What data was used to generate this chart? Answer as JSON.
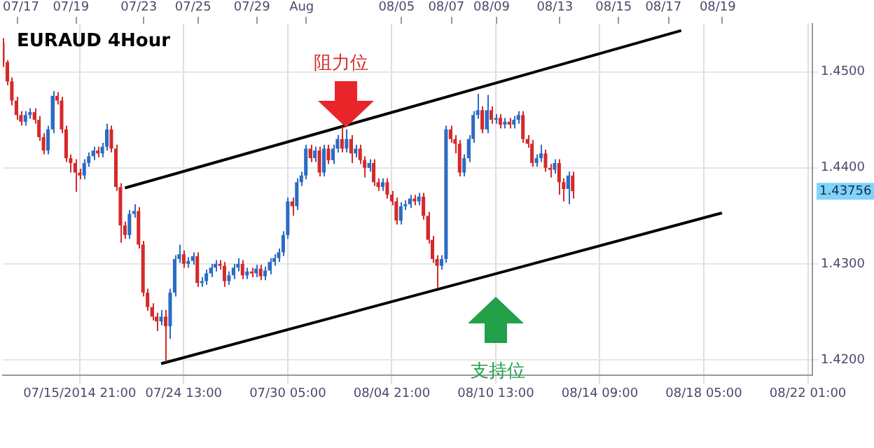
{
  "chart_data": {
    "type": "candlestick",
    "title": "EURAUD 4Hour",
    "categories": [
      null,
      null,
      null,
      null,
      null,
      null,
      null,
      null,
      null,
      null,
      null,
      null,
      null,
      null,
      null,
      null,
      null,
      "07/15/2014 21:00",
      null,
      null,
      null,
      null,
      null,
      null,
      null,
      null,
      null,
      null,
      null,
      null,
      null,
      null,
      null,
      null,
      null,
      null,
      null,
      null,
      null,
      null,
      "07/24 13:00",
      null,
      null,
      null,
      null,
      null,
      null,
      null,
      null,
      null,
      null,
      null,
      null,
      null,
      null,
      null,
      null,
      null,
      null,
      null,
      null,
      null,
      null,
      "07/30 05:00",
      null,
      null,
      null,
      null,
      null,
      null,
      null,
      null,
      null,
      null,
      null,
      null,
      null,
      null,
      null,
      null,
      null,
      null,
      null,
      null,
      null,
      null,
      "08/04 21:00",
      null,
      null,
      null,
      null,
      null,
      null,
      null,
      null,
      null,
      null,
      null,
      null,
      null,
      null,
      null,
      null,
      null,
      null,
      null,
      null,
      null,
      null,
      "08/10 13:00",
      null,
      null,
      null,
      null,
      null,
      null,
      null,
      null,
      null,
      null,
      null,
      null,
      null,
      null,
      null,
      null,
      null,
      null,
      null,
      null,
      null,
      null,
      "08/14 09:00",
      null,
      null,
      null,
      null,
      null,
      null,
      null,
      null,
      null,
      null,
      null,
      null,
      null,
      null,
      null,
      null,
      null,
      null,
      null,
      null,
      null,
      null,
      "08/18 05:00",
      null,
      null,
      null,
      null,
      null,
      null,
      null,
      null,
      null,
      null,
      null,
      null,
      null,
      null,
      null,
      null,
      null,
      null,
      null,
      null,
      null,
      null,
      "08/22 01:00",
      null
    ],
    "ohlc": [
      [
        1.453,
        1.4535,
        1.4505,
        1.451
      ],
      [
        1.451,
        1.4512,
        1.4486,
        1.449
      ],
      [
        1.449,
        1.4494,
        1.4465,
        1.447
      ],
      [
        1.447,
        1.4474,
        1.445,
        1.4455
      ],
      [
        1.4455,
        1.4459,
        1.4444,
        1.4448
      ],
      [
        1.4448,
        1.4459,
        1.4444,
        1.4455
      ],
      [
        1.4455,
        1.4462,
        1.4451,
        1.4458
      ],
      [
        1.4458,
        1.4462,
        1.4446,
        1.445
      ],
      [
        1.445,
        1.4454,
        1.4428,
        1.4432
      ],
      [
        1.4432,
        1.4436,
        1.4414,
        1.4418
      ],
      [
        1.4418,
        1.4444,
        1.4414,
        1.444
      ],
      [
        1.444,
        1.448,
        1.4436,
        1.4475
      ],
      [
        1.4475,
        1.4479,
        1.4466,
        1.447
      ],
      [
        1.447,
        1.4474,
        1.4436,
        1.444
      ],
      [
        1.444,
        1.4444,
        1.4406,
        1.441
      ],
      [
        1.441,
        1.4414,
        1.4395,
        1.4405
      ],
      [
        1.4405,
        1.4409,
        1.4375,
        1.4395
      ],
      [
        1.4395,
        1.4399,
        1.4388,
        1.4392
      ],
      [
        1.4392,
        1.4409,
        1.4388,
        1.4405
      ],
      [
        1.4405,
        1.4416,
        1.4401,
        1.4412
      ],
      [
        1.4412,
        1.4422,
        1.4408,
        1.4418
      ],
      [
        1.4418,
        1.4422,
        1.4411,
        1.4415
      ],
      [
        1.4415,
        1.4426,
        1.4411,
        1.4422
      ],
      [
        1.4422,
        1.4446,
        1.4418,
        1.444
      ],
      [
        1.444,
        1.4444,
        1.4416,
        1.442
      ],
      [
        1.442,
        1.4424,
        1.4376,
        1.438
      ],
      [
        1.438,
        1.4384,
        1.4322,
        1.434
      ],
      [
        1.434,
        1.4344,
        1.4326,
        1.433
      ],
      [
        1.433,
        1.4356,
        1.4326,
        1.4352
      ],
      [
        1.4352,
        1.4362,
        1.4348,
        1.4355
      ],
      [
        1.4355,
        1.4359,
        1.4316,
        1.432
      ],
      [
        1.432,
        1.4324,
        1.4266,
        1.427
      ],
      [
        1.427,
        1.4274,
        1.4251,
        1.4255
      ],
      [
        1.4255,
        1.4259,
        1.4241,
        1.4245
      ],
      [
        1.4245,
        1.4249,
        1.423,
        1.424
      ],
      [
        1.424,
        1.4252,
        1.4236,
        1.4245
      ],
      [
        1.4245,
        1.4252,
        1.4198,
        1.4235
      ],
      [
        1.4235,
        1.4274,
        1.4222,
        1.427
      ],
      [
        1.427,
        1.4309,
        1.4266,
        1.4305
      ],
      [
        1.4305,
        1.432,
        1.4301,
        1.431
      ],
      [
        1.431,
        1.4314,
        1.4296,
        1.43
      ],
      [
        1.43,
        1.4307,
        1.4296,
        1.4303
      ],
      [
        1.4303,
        1.4312,
        1.4299,
        1.4308
      ],
      [
        1.4308,
        1.4312,
        1.4276,
        1.428
      ],
      [
        1.428,
        1.4286,
        1.4276,
        1.4282
      ],
      [
        1.4282,
        1.4294,
        1.4278,
        1.429
      ],
      [
        1.429,
        1.43,
        1.4286,
        1.4296
      ],
      [
        1.4296,
        1.4304,
        1.4292,
        1.43
      ],
      [
        1.43,
        1.4304,
        1.4294,
        1.4298
      ],
      [
        1.4298,
        1.4302,
        1.4276,
        1.4282
      ],
      [
        1.4282,
        1.4292,
        1.4278,
        1.4288
      ],
      [
        1.4288,
        1.43,
        1.4284,
        1.4296
      ],
      [
        1.4296,
        1.4306,
        1.4292,
        1.43
      ],
      [
        1.43,
        1.4304,
        1.4284,
        1.4288
      ],
      [
        1.4288,
        1.4296,
        1.4284,
        1.4292
      ],
      [
        1.4292,
        1.4296,
        1.4286,
        1.429
      ],
      [
        1.429,
        1.4299,
        1.4286,
        1.4295
      ],
      [
        1.4295,
        1.4299,
        1.4283,
        1.4287
      ],
      [
        1.4287,
        1.4297,
        1.4283,
        1.4293
      ],
      [
        1.4293,
        1.4306,
        1.4289,
        1.4302
      ],
      [
        1.4302,
        1.431,
        1.4298,
        1.4306
      ],
      [
        1.4306,
        1.4316,
        1.4302,
        1.4312
      ],
      [
        1.4312,
        1.4334,
        1.4308,
        1.433
      ],
      [
        1.433,
        1.4369,
        1.4326,
        1.4365
      ],
      [
        1.4365,
        1.4369,
        1.435,
        1.436
      ],
      [
        1.436,
        1.4389,
        1.4356,
        1.4385
      ],
      [
        1.4385,
        1.4396,
        1.4381,
        1.4392
      ],
      [
        1.4392,
        1.4424,
        1.4388,
        1.442
      ],
      [
        1.442,
        1.4424,
        1.4406,
        1.441
      ],
      [
        1.441,
        1.4422,
        1.4406,
        1.4418
      ],
      [
        1.4418,
        1.4422,
        1.4391,
        1.4395
      ],
      [
        1.4395,
        1.4424,
        1.4391,
        1.442
      ],
      [
        1.442,
        1.4424,
        1.4404,
        1.4408
      ],
      [
        1.4408,
        1.4424,
        1.4404,
        1.442
      ],
      [
        1.442,
        1.4434,
        1.4416,
        1.443
      ],
      [
        1.443,
        1.4443,
        1.4416,
        1.442
      ],
      [
        1.442,
        1.444,
        1.4416,
        1.443
      ],
      [
        1.443,
        1.4434,
        1.4405,
        1.4415
      ],
      [
        1.4415,
        1.4424,
        1.4411,
        1.442
      ],
      [
        1.442,
        1.4424,
        1.4404,
        1.4408
      ],
      [
        1.4408,
        1.4412,
        1.439,
        1.44
      ],
      [
        1.44,
        1.4409,
        1.4396,
        1.4405
      ],
      [
        1.4405,
        1.4409,
        1.4381,
        1.4385
      ],
      [
        1.4385,
        1.4389,
        1.4376,
        1.438
      ],
      [
        1.438,
        1.4389,
        1.4376,
        1.4385
      ],
      [
        1.4385,
        1.4389,
        1.4368,
        1.4372
      ],
      [
        1.4372,
        1.4376,
        1.4361,
        1.4365
      ],
      [
        1.4365,
        1.4369,
        1.4341,
        1.4345
      ],
      [
        1.4345,
        1.4364,
        1.4341,
        1.436
      ],
      [
        1.436,
        1.4366,
        1.4356,
        1.4362
      ],
      [
        1.4362,
        1.4372,
        1.4358,
        1.4368
      ],
      [
        1.4368,
        1.4372,
        1.4361,
        1.4365
      ],
      [
        1.4365,
        1.4374,
        1.4361,
        1.437
      ],
      [
        1.437,
        1.4374,
        1.4346,
        1.435
      ],
      [
        1.435,
        1.4354,
        1.4321,
        1.4325
      ],
      [
        1.4325,
        1.4329,
        1.4301,
        1.4305
      ],
      [
        1.4305,
        1.4309,
        1.4275,
        1.4298
      ],
      [
        1.4298,
        1.4309,
        1.4294,
        1.4305
      ],
      [
        1.4305,
        1.4444,
        1.4301,
        1.444
      ],
      [
        1.444,
        1.4444,
        1.4426,
        1.443
      ],
      [
        1.443,
        1.4434,
        1.4415,
        1.4425
      ],
      [
        1.4425,
        1.4429,
        1.4391,
        1.4395
      ],
      [
        1.4395,
        1.4414,
        1.4391,
        1.441
      ],
      [
        1.441,
        1.4434,
        1.4406,
        1.443
      ],
      [
        1.443,
        1.4459,
        1.4426,
        1.4455
      ],
      [
        1.4455,
        1.4477,
        1.4451,
        1.446
      ],
      [
        1.446,
        1.4464,
        1.4436,
        1.444
      ],
      [
        1.444,
        1.4476,
        1.4436,
        1.446
      ],
      [
        1.446,
        1.4464,
        1.4446,
        1.445
      ],
      [
        1.445,
        1.4456,
        1.4446,
        1.4452
      ],
      [
        1.4452,
        1.4456,
        1.4441,
        1.4445
      ],
      [
        1.4445,
        1.4452,
        1.4441,
        1.4448
      ],
      [
        1.4448,
        1.4452,
        1.4441,
        1.4445
      ],
      [
        1.4445,
        1.4454,
        1.4441,
        1.445
      ],
      [
        1.445,
        1.4459,
        1.4446,
        1.4455
      ],
      [
        1.4455,
        1.4459,
        1.4426,
        1.443
      ],
      [
        1.443,
        1.4434,
        1.4421,
        1.4425
      ],
      [
        1.4425,
        1.4429,
        1.4401,
        1.4405
      ],
      [
        1.4405,
        1.4414,
        1.4401,
        1.441
      ],
      [
        1.441,
        1.4424,
        1.4406,
        1.4415
      ],
      [
        1.4415,
        1.4419,
        1.4396,
        1.44
      ],
      [
        1.44,
        1.4404,
        1.439,
        1.4398
      ],
      [
        1.4398,
        1.4409,
        1.4394,
        1.4405
      ],
      [
        1.4405,
        1.4409,
        1.4372,
        1.4385
      ],
      [
        1.4385,
        1.4389,
        1.4365,
        1.4378
      ],
      [
        1.4378,
        1.4396,
        1.4362,
        1.4392
      ],
      [
        1.4392,
        1.4396,
        1.4368,
        1.43756
      ],
      null,
      null,
      null,
      null,
      null,
      null,
      null,
      null,
      null,
      null,
      null,
      null,
      null,
      null,
      null,
      null,
      null,
      null,
      null,
      null,
      null,
      null,
      null,
      null,
      null,
      null,
      null,
      null,
      null,
      null,
      null,
      null,
      null,
      null,
      null,
      null,
      null,
      null,
      null,
      null,
      null,
      null,
      null,
      null,
      null,
      null,
      null,
      null,
      null,
      null,
      null,
      null,
      null
    ],
    "colors": [
      "#d42a2a",
      "#d42a2a",
      "#d42a2a",
      "#d42a2a",
      "#d42a2a",
      "#2b6cc4",
      "#2b6cc4",
      "#d42a2a",
      "#d42a2a",
      "#d42a2a",
      "#2b6cc4",
      "#2b6cc4",
      "#d42a2a",
      "#d42a2a",
      "#d42a2a",
      "#d42a2a",
      "#d42a2a",
      "#d42a2a",
      "#2b6cc4",
      "#2b6cc4",
      "#2b6cc4",
      "#d42a2a",
      "#2b6cc4",
      "#2b6cc4",
      "#d42a2a",
      "#d42a2a",
      "#d42a2a",
      "#d42a2a",
      "#2b6cc4",
      "#2b6cc4",
      "#d42a2a",
      "#d42a2a",
      "#d42a2a",
      "#d42a2a",
      "#d42a2a",
      "#2b6cc4",
      "#d42a2a",
      "#2b6cc4",
      "#2b6cc4",
      "#2b6cc4",
      "#d42a2a",
      "#2b6cc4",
      "#2b6cc4",
      "#d42a2a",
      "#2b6cc4",
      "#2b6cc4",
      "#2b6cc4",
      "#2b6cc4",
      "#d42a2a",
      "#d42a2a",
      "#2b6cc4",
      "#2b6cc4",
      "#2b6cc4",
      "#d42a2a",
      "#2b6cc4",
      "#d42a2a",
      "#2b6cc4",
      "#d42a2a",
      "#2b6cc4",
      "#2b6cc4",
      "#2b6cc4",
      "#2b6cc4",
      "#2b6cc4",
      "#2b6cc4",
      "#d42a2a",
      "#2b6cc4",
      "#2b6cc4",
      "#2b6cc4",
      "#d42a2a",
      "#2b6cc4",
      "#d42a2a",
      "#2b6cc4",
      "#d42a2a",
      "#2b6cc4",
      "#2b6cc4",
      "#d42a2a",
      "#2b6cc4",
      "#d42a2a",
      "#2b6cc4",
      "#d42a2a",
      "#d42a2a",
      "#2b6cc4",
      "#d42a2a",
      "#d42a2a",
      "#2b6cc4",
      "#d42a2a",
      "#d42a2a",
      "#d42a2a",
      "#2b6cc4",
      "#2b6cc4",
      "#2b6cc4",
      "#d42a2a",
      "#2b6cc4",
      "#d42a2a",
      "#d42a2a",
      "#d42a2a",
      "#d42a2a",
      "#2b6cc4",
      "#2b6cc4",
      "#d42a2a",
      "#d42a2a",
      "#d42a2a",
      "#2b6cc4",
      "#2b6cc4",
      "#2b6cc4",
      "#2b6cc4",
      "#d42a2a",
      "#2b6cc4",
      "#d42a2a",
      "#2b6cc4",
      "#d42a2a",
      "#2b6cc4",
      "#d42a2a",
      "#2b6cc4",
      "#2b6cc4",
      "#d42a2a",
      "#d42a2a",
      "#d42a2a",
      "#2b6cc4",
      "#2b6cc4",
      "#d42a2a",
      "#d42a2a",
      "#2b6cc4",
      "#d42a2a",
      "#d42a2a",
      "#2b6cc4",
      "#d42a2a",
      null,
      null,
      null,
      null,
      null,
      null,
      null,
      null,
      null,
      null,
      null,
      null,
      null,
      null,
      null,
      null,
      null,
      null,
      null,
      null,
      null,
      null,
      null,
      null,
      null,
      null,
      null,
      null,
      null,
      null,
      null,
      null,
      null,
      null,
      null,
      null,
      null,
      null,
      null,
      null,
      null,
      null,
      null,
      null,
      null,
      null,
      null,
      null,
      null,
      null,
      null,
      null,
      null
    ],
    "series": [
      {
        "type": "line",
        "color": "#000000",
        "values": [
          null,
          null,
          null,
          null,
          null,
          null,
          null,
          null,
          null,
          null,
          null,
          null,
          null,
          null,
          null,
          null,
          null,
          null,
          null,
          null,
          null,
          null,
          null,
          null,
          null,
          null,
          null,
          1.4379,
          null,
          null,
          null,
          null,
          null,
          null,
          null,
          null,
          null,
          null,
          null,
          null,
          null,
          null,
          null,
          null,
          null,
          null,
          null,
          null,
          null,
          null,
          null,
          null,
          null,
          null,
          null,
          null,
          null,
          null,
          null,
          null,
          null,
          null,
          null,
          null,
          null,
          null,
          null,
          null,
          null,
          null,
          null,
          null,
          null,
          null,
          null,
          null,
          null,
          null,
          null,
          null,
          null,
          null,
          null,
          null,
          null,
          null,
          null,
          null,
          null,
          null,
          null,
          null,
          null,
          null,
          null,
          null,
          null,
          null,
          null,
          null,
          null,
          null,
          null,
          null,
          null,
          null,
          null,
          null,
          null,
          null,
          null,
          null,
          null,
          null,
          null,
          null,
          null,
          null,
          null,
          null,
          null,
          null,
          null,
          null,
          null,
          null,
          null,
          null,
          null,
          null,
          null,
          null,
          null,
          null,
          null,
          null,
          null,
          null,
          null,
          null,
          null,
          null,
          null,
          null,
          null,
          null,
          null,
          null,
          null,
          null,
          1.4543,
          null,
          null,
          null,
          null,
          null,
          null,
          null,
          null,
          null,
          null,
          null,
          null,
          null,
          null,
          null,
          null,
          null,
          null,
          null,
          null,
          null,
          null,
          null,
          null,
          null,
          null,
          null,
          null,
          null
        ]
      },
      {
        "type": "line",
        "color": "#000000",
        "values": [
          null,
          null,
          null,
          null,
          null,
          null,
          null,
          null,
          null,
          null,
          null,
          null,
          null,
          null,
          null,
          null,
          null,
          null,
          null,
          null,
          null,
          null,
          null,
          null,
          null,
          null,
          null,
          null,
          null,
          null,
          null,
          null,
          null,
          null,
          null,
          1.4196,
          null,
          null,
          null,
          null,
          null,
          null,
          null,
          null,
          null,
          null,
          null,
          null,
          null,
          null,
          null,
          null,
          null,
          null,
          null,
          null,
          null,
          null,
          null,
          null,
          null,
          null,
          null,
          null,
          null,
          null,
          null,
          null,
          null,
          null,
          null,
          null,
          null,
          null,
          null,
          null,
          null,
          null,
          null,
          null,
          null,
          null,
          null,
          null,
          null,
          null,
          null,
          null,
          null,
          null,
          null,
          null,
          null,
          null,
          null,
          null,
          null,
          null,
          null,
          null,
          null,
          null,
          null,
          null,
          null,
          null,
          null,
          null,
          null,
          null,
          null,
          null,
          null,
          null,
          null,
          null,
          null,
          null,
          null,
          null,
          null,
          null,
          null,
          null,
          null,
          null,
          null,
          null,
          null,
          null,
          null,
          null,
          null,
          null,
          null,
          null,
          null,
          null,
          null,
          null,
          null,
          null,
          null,
          null,
          null,
          null,
          null,
          null,
          null,
          null,
          null,
          null,
          null,
          null,
          null,
          null,
          null,
          null,
          null,
          1.4353,
          null,
          null,
          null,
          null,
          null,
          null,
          null,
          null,
          null,
          null,
          null,
          null,
          null,
          null,
          null,
          null,
          null,
          null,
          null,
          null
        ]
      }
    ],
    "ylim": [
      1.4184,
      1.455
    ],
    "yticks": [
      {
        "value": 1.42,
        "label": "1.4200"
      },
      {
        "value": 1.43,
        "label": "1.4300"
      },
      {
        "value": 1.44,
        "label": "1.4400"
      },
      {
        "value": 1.45,
        "label": "1.4500"
      }
    ],
    "grid": true,
    "annotations": [
      "07/17",
      "07/19",
      "07/23",
      "07/25",
      "07/29",
      "Aug",
      "08/05",
      "08/07",
      "08/09",
      "08/13",
      "08/15",
      "08/17",
      "08/19",
      "阻力位",
      "支持位",
      "1.43756"
    ]
  }
}
